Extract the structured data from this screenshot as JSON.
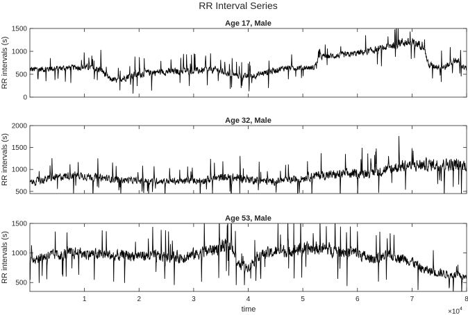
{
  "figure": {
    "title": "RR Interval Series",
    "shared_xlabel": "time",
    "x_exponent_label": "×10",
    "x_exponent_power": "4"
  },
  "chart_data": [
    {
      "type": "line",
      "title": "Age 17, Male",
      "ylabel": "RR intervals (s)",
      "xlabel": "",
      "xlim": [
        0,
        80000
      ],
      "ylim": [
        0,
        1500
      ],
      "yticks": [
        0,
        500,
        1000,
        1500
      ],
      "xticks": [],
      "grid": false,
      "series": [
        {
          "color": "#000000",
          "x": [
            0,
            4000,
            8000,
            11000,
            13000,
            14500,
            16000,
            18000,
            22000,
            26000,
            30000,
            34000,
            38000,
            40000,
            44000,
            47000,
            52000,
            53000,
            58000,
            62000,
            65000,
            68000,
            70000,
            72000,
            73000,
            76000,
            78000,
            80000
          ],
          "y": [
            600,
            620,
            650,
            650,
            600,
            400,
            360,
            460,
            540,
            560,
            570,
            600,
            470,
            440,
            560,
            650,
            640,
            880,
            920,
            1000,
            1080,
            1200,
            1180,
            1150,
            700,
            650,
            820,
            600
          ],
          "spread": [
            160,
            150,
            140,
            150,
            180,
            160,
            130,
            180,
            170,
            160,
            160,
            170,
            140,
            140,
            160,
            140,
            120,
            140,
            150,
            160,
            180,
            220,
            220,
            220,
            160,
            150,
            160,
            150
          ]
        }
      ]
    },
    {
      "type": "line",
      "title": "Age 32, Male",
      "ylabel": "RR intervals (s)",
      "xlabel": "",
      "xlim": [
        0,
        80000
      ],
      "ylim": [
        450,
        2000
      ],
      "yticks": [
        500,
        1000,
        1500,
        2000
      ],
      "xticks": [],
      "grid": false,
      "series": [
        {
          "color": "#000000",
          "x": [
            0,
            4000,
            8000,
            12000,
            16000,
            20000,
            24000,
            28000,
            32000,
            36000,
            40000,
            44000,
            48000,
            52000,
            56000,
            60000,
            64000,
            68000,
            72000,
            76000,
            80000
          ],
          "y": [
            700,
            800,
            880,
            820,
            770,
            740,
            740,
            730,
            760,
            820,
            780,
            720,
            760,
            860,
            880,
            900,
            960,
            1080,
            1100,
            1120,
            1100
          ],
          "spread": [
            170,
            190,
            200,
            190,
            170,
            160,
            160,
            160,
            190,
            220,
            210,
            170,
            190,
            220,
            240,
            250,
            270,
            300,
            310,
            320,
            320
          ]
        }
      ]
    },
    {
      "type": "line",
      "title": "Age 53, Male",
      "ylabel": "RR intervals (s)",
      "xlabel": "time",
      "xlim": [
        0,
        80000
      ],
      "ylim": [
        350,
        1500
      ],
      "yticks": [
        500,
        1000,
        1500
      ],
      "xticks": [
        10000,
        20000,
        30000,
        40000,
        50000,
        60000,
        70000,
        80000
      ],
      "xticklabels": [
        "1",
        "2",
        "3",
        "4",
        "5",
        "6",
        "7",
        "8"
      ],
      "grid": false,
      "series": [
        {
          "color": "#000000",
          "x": [
            0,
            4000,
            8000,
            12000,
            16000,
            20000,
            24000,
            28000,
            32000,
            35000,
            37000,
            38000,
            40000,
            42000,
            44000,
            48000,
            52000,
            56000,
            60000,
            62000,
            66000,
            68000,
            70000,
            72000,
            74000,
            76000,
            78000,
            80000
          ],
          "y": [
            900,
            960,
            1000,
            980,
            950,
            960,
            940,
            930,
            1020,
            1100,
            1150,
            800,
            760,
            980,
            1000,
            1050,
            1080,
            1050,
            1000,
            900,
            950,
            920,
            860,
            720,
            680,
            650,
            620,
            580
          ],
          "spread": [
            200,
            210,
            220,
            210,
            210,
            200,
            210,
            220,
            240,
            260,
            260,
            160,
            160,
            220,
            220,
            240,
            250,
            250,
            240,
            200,
            200,
            200,
            190,
            180,
            170,
            160,
            150,
            150
          ]
        }
      ]
    }
  ]
}
